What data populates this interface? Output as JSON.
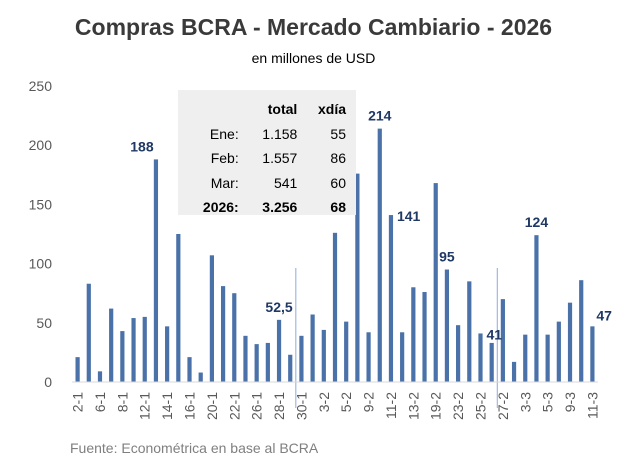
{
  "chart_data": {
    "type": "bar",
    "title": "Compras BCRA - Mercado Cambiario - 2026",
    "subtitle": "en millones de USD",
    "source": "Fuente: Econométrica en base al BCRA",
    "ylim": [
      0,
      250
    ],
    "yticks": [
      0,
      50,
      100,
      150,
      200,
      250
    ],
    "grid": false,
    "bar_color": "#4a72a8",
    "label_color": "#1f3864",
    "divider_color": "#8eaadb",
    "x_tick_labels": [
      "2-1",
      "6-1",
      "8-1",
      "12-1",
      "14-1",
      "16-1",
      "20-1",
      "22-1",
      "26-1",
      "28-1",
      "30-1",
      "3-2",
      "5-2",
      "9-2",
      "11-2",
      "13-2",
      "19-2",
      "23-2",
      "25-2",
      "27-2",
      "3-3",
      "5-3",
      "9-3",
      "11-3"
    ],
    "values": [
      21,
      83,
      9,
      62,
      43,
      54,
      55,
      188,
      47,
      125,
      21,
      8,
      107,
      81,
      75,
      39,
      32,
      33,
      52.5,
      23,
      39,
      57,
      44,
      126,
      51,
      176,
      42,
      214,
      141,
      42,
      80,
      76,
      168,
      95,
      48,
      85,
      41,
      33,
      70,
      17,
      40,
      124,
      40,
      51,
      67,
      86,
      47
    ],
    "data_labels": [
      {
        "index": 7,
        "text": "188"
      },
      {
        "index": 18,
        "text": "52,5"
      },
      {
        "index": 27,
        "text": "214"
      },
      {
        "index": 28,
        "text": "141"
      },
      {
        "index": 33,
        "text": "95"
      },
      {
        "index": 36,
        "text": "41"
      },
      {
        "index": 41,
        "text": "124"
      },
      {
        "index": 46,
        "text": "47"
      }
    ],
    "month_dividers_after_index": [
      19,
      37
    ],
    "summary_table": {
      "headers": [
        "",
        "total",
        "xdía"
      ],
      "rows": [
        {
          "label": "Ene:",
          "total": "1.158",
          "xdia": "55"
        },
        {
          "label": "Feb:",
          "total": "1.557",
          "xdia": "86"
        },
        {
          "label": "Mar:",
          "total": "541",
          "xdia": "60"
        },
        {
          "label": "2026:",
          "total": "3.256",
          "xdia": "68"
        }
      ]
    }
  }
}
